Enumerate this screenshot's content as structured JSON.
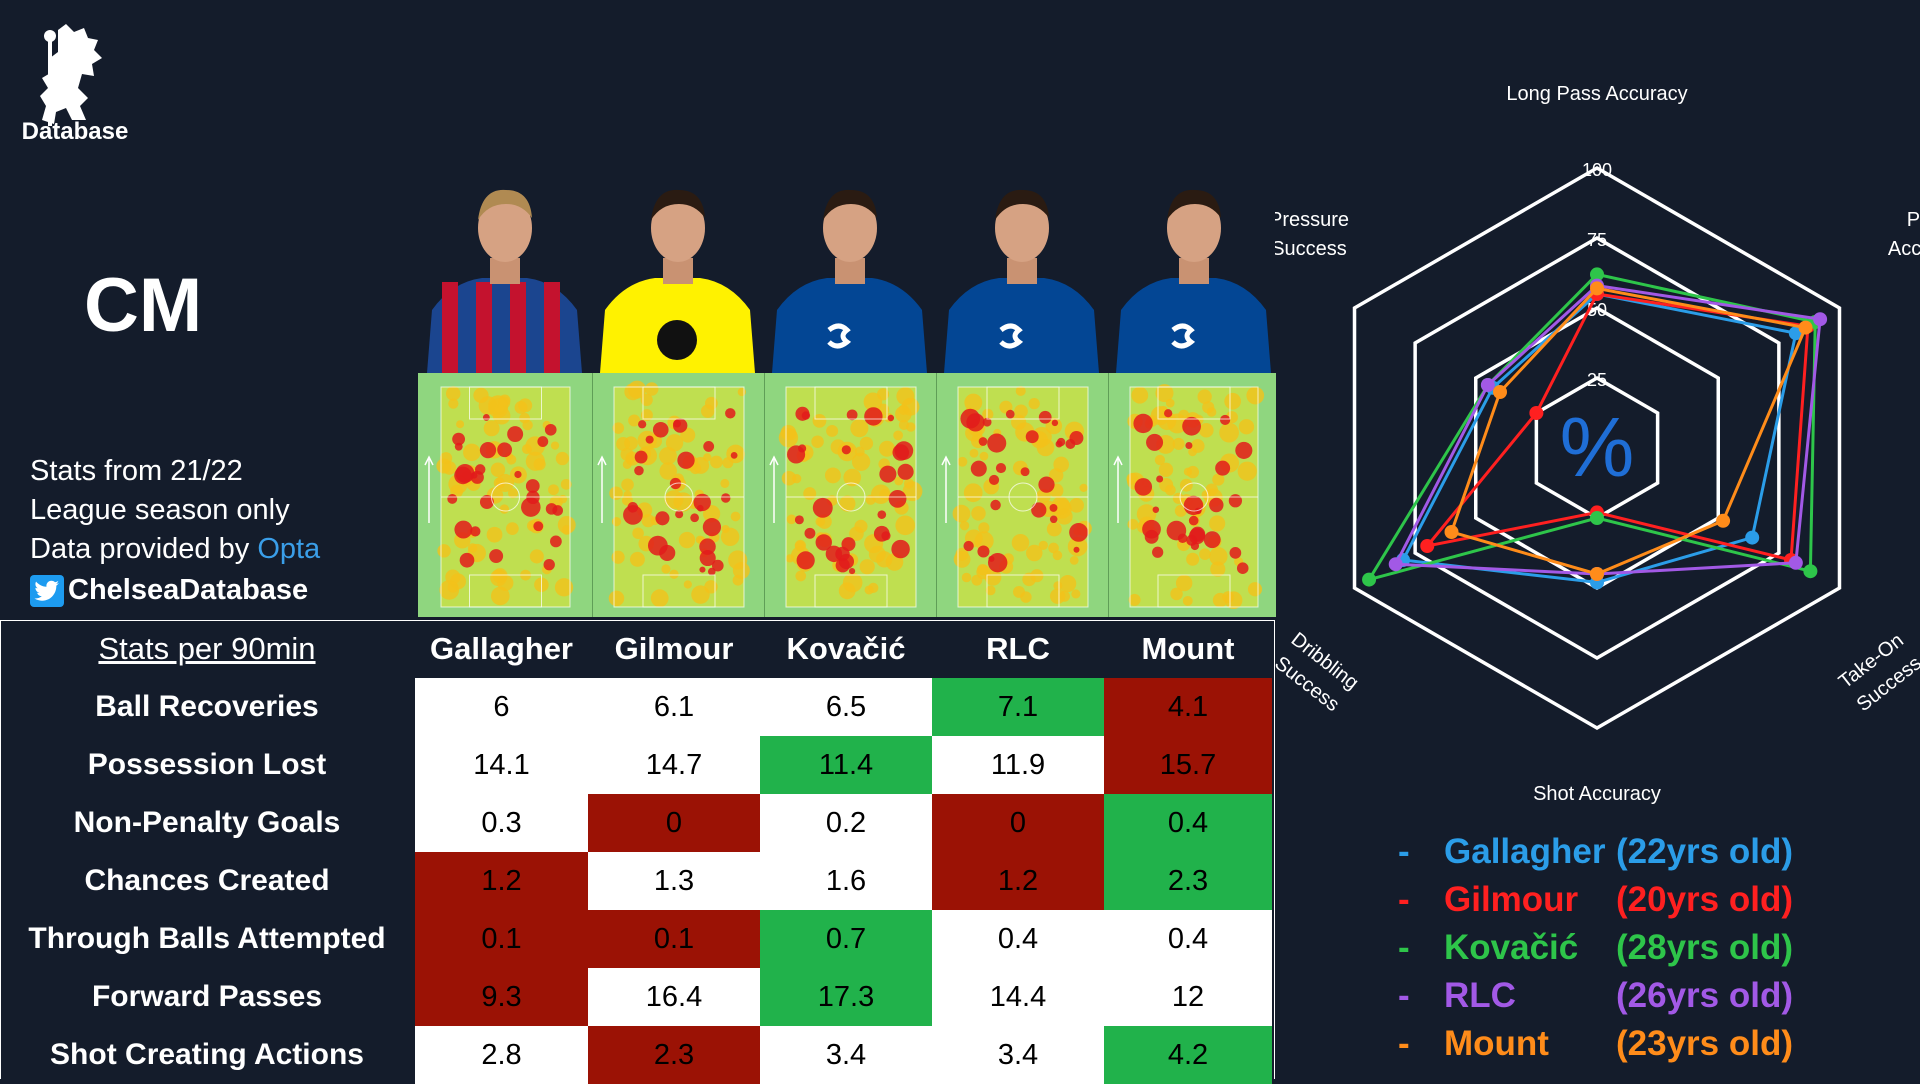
{
  "logo": {
    "text": "Database"
  },
  "position_label": "CM",
  "info": {
    "line1": "Stats from 21/22",
    "line2": "League season only",
    "line3_prefix": "Data provided by ",
    "line3_brand": "Opta",
    "twitter_handle": "ChelseaDatabase",
    "icons": [
      "lion-crest-icon",
      "twitter-bird-icon"
    ]
  },
  "players": [
    {
      "name": "Gallagher",
      "kit": "crystal-palace",
      "kit_colors": [
        "#1b458f",
        "#c4122e"
      ]
    },
    {
      "name": "Gilmour",
      "kit": "norwich",
      "kit_colors": [
        "#fff200",
        "#00a650"
      ]
    },
    {
      "name": "Kovačić",
      "kit": "chelsea",
      "kit_colors": [
        "#034694",
        "#ffffff"
      ]
    },
    {
      "name": "RLC",
      "kit": "chelsea",
      "kit_colors": [
        "#034694",
        "#ffffff"
      ]
    },
    {
      "name": "Mount",
      "kit": "chelsea",
      "kit_colors": [
        "#034694",
        "#ffffff"
      ]
    }
  ],
  "colors": {
    "background": "#141c2b",
    "good": "#21b24b",
    "bad": "#9b1205",
    "neutral": "#ffffff",
    "pitch": "#8fd67f"
  },
  "chart_data": [
    {
      "type": "table",
      "title": "Stats per 90min",
      "columns": [
        "Gallagher",
        "Gilmour",
        "Kovačić",
        "RLC",
        "Mount"
      ],
      "rows": [
        {
          "label": "Ball Recoveries",
          "values": [
            "6",
            "6.1",
            "6.5",
            "7.1",
            "4.1"
          ],
          "ratings": [
            "neutral",
            "neutral",
            "neutral",
            "good",
            "bad"
          ]
        },
        {
          "label": "Possession Lost",
          "values": [
            "14.1",
            "14.7",
            "11.4",
            "11.9",
            "15.7"
          ],
          "ratings": [
            "neutral",
            "neutral",
            "good",
            "neutral",
            "bad"
          ]
        },
        {
          "label": "Non-Penalty Goals",
          "values": [
            "0.3",
            "0",
            "0.2",
            "0",
            "0.4"
          ],
          "ratings": [
            "neutral",
            "bad",
            "neutral",
            "bad",
            "good"
          ]
        },
        {
          "label": "Chances Created",
          "values": [
            "1.2",
            "1.3",
            "1.6",
            "1.2",
            "2.3"
          ],
          "ratings": [
            "bad",
            "neutral",
            "neutral",
            "bad",
            "good"
          ]
        },
        {
          "label": "Through Balls Attempted",
          "values": [
            "0.1",
            "0.1",
            "0.7",
            "0.4",
            "0.4"
          ],
          "ratings": [
            "bad",
            "bad",
            "good",
            "neutral",
            "neutral"
          ]
        },
        {
          "label": "Forward Passes",
          "values": [
            "9.3",
            "16.4",
            "17.3",
            "14.4",
            "12"
          ],
          "ratings": [
            "bad",
            "neutral",
            "good",
            "neutral",
            "neutral"
          ]
        },
        {
          "label": "Shot Creating Actions",
          "values": [
            "2.8",
            "2.3",
            "3.4",
            "3.4",
            "4.2"
          ],
          "ratings": [
            "neutral",
            "bad",
            "neutral",
            "neutral",
            "good"
          ]
        }
      ]
    },
    {
      "type": "radar",
      "center_label": "%",
      "axes": [
        {
          "label": [
            "Long Pass Accuracy"
          ]
        },
        {
          "label": [
            "Pass",
            "Accuracy"
          ]
        },
        {
          "label": [
            "Take-On",
            "Success"
          ]
        },
        {
          "label": [
            "Shot Accuracy"
          ]
        },
        {
          "label": [
            "Dribbling",
            "Success"
          ]
        },
        {
          "label": [
            "Pressure",
            "Success"
          ]
        }
      ],
      "range": [
        0,
        100
      ],
      "ticks": [
        "25",
        "50",
        "75",
        "100"
      ],
      "series": [
        {
          "name": "Gallagher",
          "age": "(22yrs old)",
          "color": "#2b9de8",
          "values": [
            55,
            82,
            64,
            48,
            80,
            43
          ]
        },
        {
          "name": "Gilmour",
          "age": "(20yrs old)",
          "color": "#ff2020",
          "values": [
            55,
            87,
            80,
            23,
            70,
            25
          ]
        },
        {
          "name": "Kovačić",
          "age": "(28yrs old)",
          "color": "#2ec54a",
          "values": [
            62,
            90,
            88,
            25,
            94,
            45
          ]
        },
        {
          "name": "RLC",
          "age": "(26yrs old)",
          "color": "#a259e6",
          "values": [
            58,
            92,
            82,
            45,
            83,
            45
          ]
        },
        {
          "name": "Mount",
          "age": "(23yrs old)",
          "color": "#ff8c1a",
          "values": [
            57,
            86,
            52,
            45,
            60,
            40
          ]
        }
      ]
    }
  ]
}
